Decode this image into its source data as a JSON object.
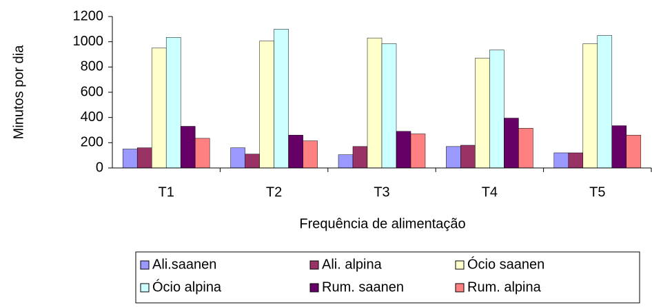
{
  "chart_data": {
    "type": "bar",
    "y_label": "Minutos por dia",
    "x_label": "Frequência de alimentação",
    "categories": [
      "T1",
      "T2",
      "T3",
      "T4",
      "T5"
    ],
    "series": [
      {
        "name": "Ali.saanen",
        "color": "#9999ff",
        "values": [
          150,
          160,
          105,
          170,
          120
        ]
      },
      {
        "name": "Ali. alpina",
        "color": "#993366",
        "values": [
          160,
          110,
          170,
          180,
          120
        ]
      },
      {
        "name": "Ócio saanen",
        "color": "#ffffcc",
        "values": [
          950,
          1005,
          1030,
          870,
          985
        ]
      },
      {
        "name": "Ócio alpina",
        "color": "#ccffff",
        "values": [
          1035,
          1100,
          985,
          935,
          1050
        ]
      },
      {
        "name": "Rum. saanen",
        "color": "#660066",
        "values": [
          330,
          260,
          290,
          395,
          335
        ]
      },
      {
        "name": "Rum. alpina",
        "color": "#ff8080",
        "values": [
          235,
          215,
          270,
          315,
          260
        ]
      }
    ],
    "ylim": [
      0,
      1200
    ],
    "yticks": [
      0,
      200,
      400,
      600,
      800,
      1000,
      1200
    ],
    "grid": false,
    "legend": "bottom"
  }
}
